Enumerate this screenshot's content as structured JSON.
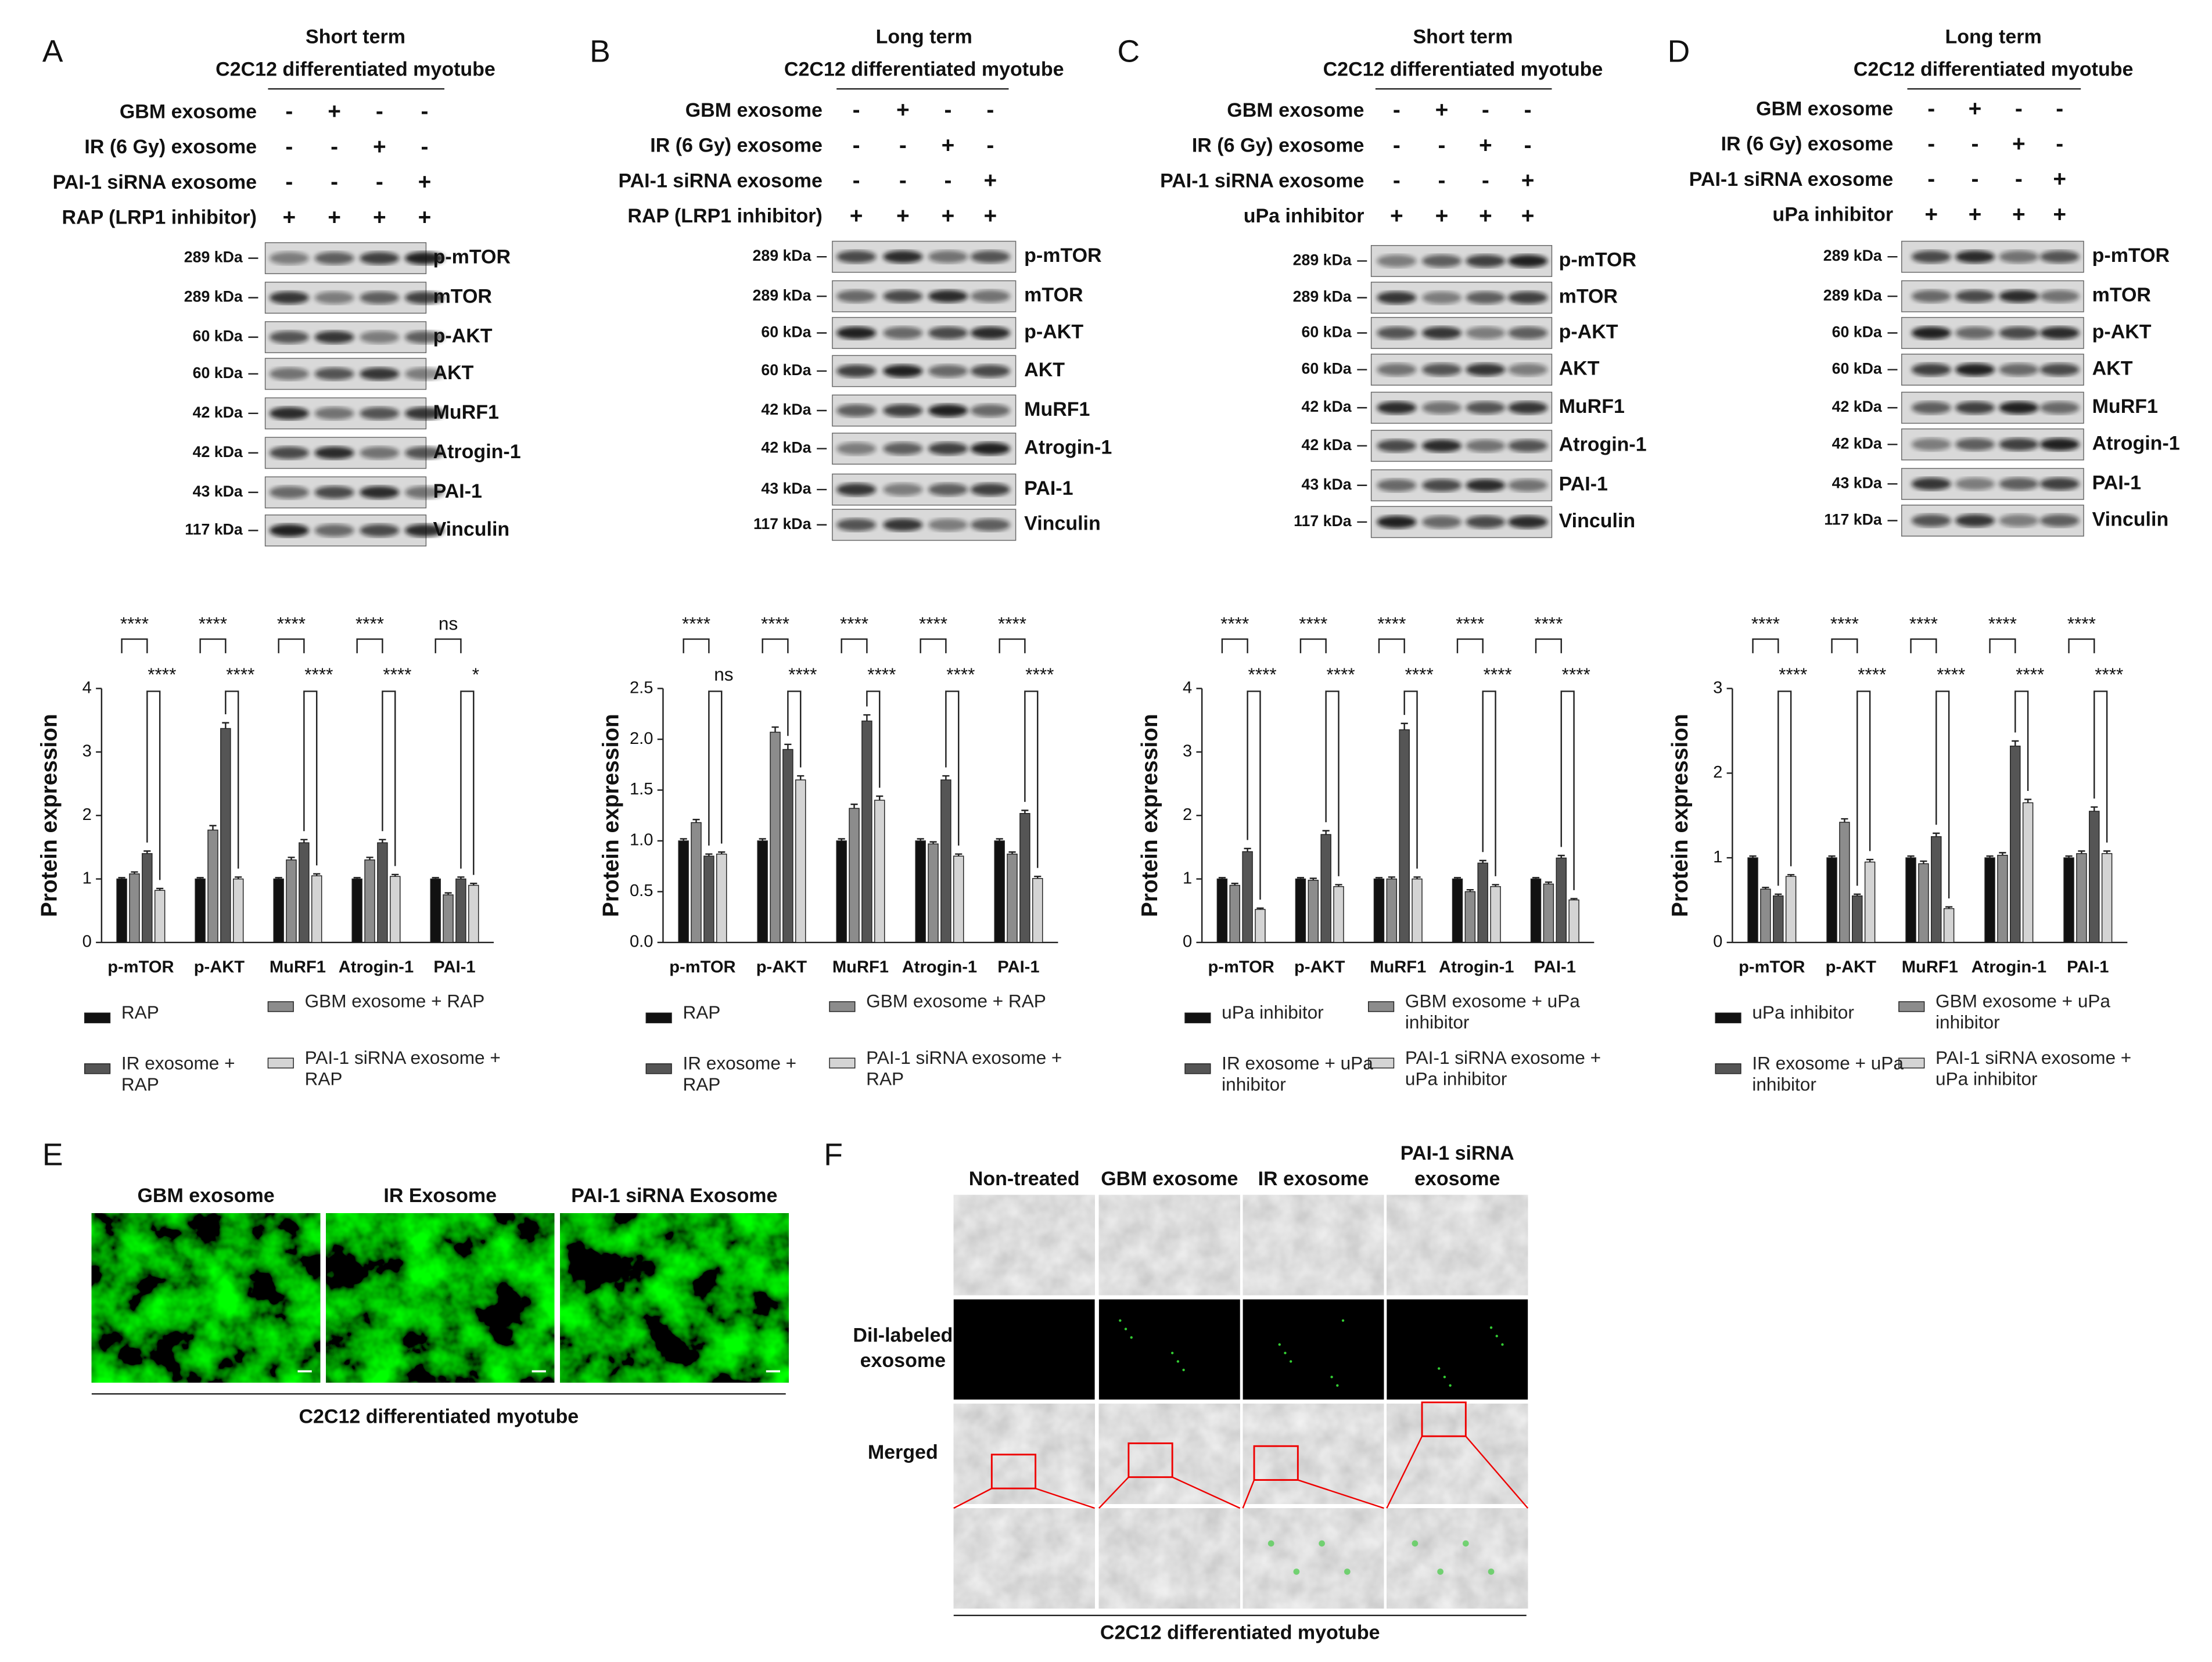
{
  "panels": [
    {
      "letter": "A",
      "title": "Short term",
      "subtitle": "C2C12 differentiated myotube",
      "conditions": [
        {
          "label": "GBM exosome",
          "signs": [
            "-",
            "+",
            "-",
            "-"
          ]
        },
        {
          "label": "IR (6 Gy) exosome",
          "signs": [
            "-",
            "-",
            "+",
            "-"
          ]
        },
        {
          "label": "PAI-1 siRNA exosome",
          "signs": [
            "-",
            "-",
            "-",
            "+"
          ]
        },
        {
          "label": "RAP (LRP1 inhibitor)",
          "signs": [
            "+",
            "+",
            "+",
            "+"
          ]
        }
      ],
      "bands": [
        {
          "kda": "289 kDa",
          "name": "p-mTOR"
        },
        {
          "kda": "289 kDa",
          "name": "mTOR"
        },
        {
          "kda": "60 kDa",
          "name": "p-AKT"
        },
        {
          "kda": "60 kDa",
          "name": "AKT"
        },
        {
          "kda": "42 kDa",
          "name": "MuRF1"
        },
        {
          "kda": "42 kDa",
          "name": "Atrogin-1"
        },
        {
          "kda": "43 kDa",
          "name": "PAI-1"
        },
        {
          "kda": "117 kDa",
          "name": "Vinculin"
        }
      ]
    },
    {
      "letter": "B",
      "title": "Long term",
      "subtitle": "C2C12 differentiated myotube",
      "conditions": [
        {
          "label": "GBM exosome",
          "signs": [
            "-",
            "+",
            "-",
            "-"
          ]
        },
        {
          "label": "IR (6 Gy) exosome",
          "signs": [
            "-",
            "-",
            "+",
            "-"
          ]
        },
        {
          "label": "PAI-1 siRNA exosome",
          "signs": [
            "-",
            "-",
            "-",
            "+"
          ]
        },
        {
          "label": "RAP (LRP1 inhibitor)",
          "signs": [
            "+",
            "+",
            "+",
            "+"
          ]
        }
      ],
      "bands": [
        {
          "kda": "289 kDa",
          "name": "p-mTOR"
        },
        {
          "kda": "289 kDa",
          "name": "mTOR"
        },
        {
          "kda": "60 kDa",
          "name": "p-AKT"
        },
        {
          "kda": "60 kDa",
          "name": "AKT"
        },
        {
          "kda": "42 kDa",
          "name": "MuRF1"
        },
        {
          "kda": "42 kDa",
          "name": "Atrogin-1"
        },
        {
          "kda": "43 kDa",
          "name": "PAI-1"
        },
        {
          "kda": "117 kDa",
          "name": "Vinculin"
        }
      ]
    },
    {
      "letter": "C",
      "title": "Short term",
      "subtitle": "C2C12 differentiated myotube",
      "conditions": [
        {
          "label": "GBM exosome",
          "signs": [
            "-",
            "+",
            "-",
            "-"
          ]
        },
        {
          "label": "IR (6 Gy) exosome",
          "signs": [
            "-",
            "-",
            "+",
            "-"
          ]
        },
        {
          "label": "PAI-1 siRNA exosome",
          "signs": [
            "-",
            "-",
            "-",
            "+"
          ]
        },
        {
          "label": "uPa inhibitor",
          "signs": [
            "+",
            "+",
            "+",
            "+"
          ]
        }
      ],
      "bands": [
        {
          "kda": "289 kDa",
          "name": "p-mTOR"
        },
        {
          "kda": "289 kDa",
          "name": "mTOR"
        },
        {
          "kda": "60 kDa",
          "name": "p-AKT"
        },
        {
          "kda": "60 kDa",
          "name": "AKT"
        },
        {
          "kda": "42 kDa",
          "name": "MuRF1"
        },
        {
          "kda": "42 kDa",
          "name": "Atrogin-1"
        },
        {
          "kda": "43 kDa",
          "name": "PAI-1"
        },
        {
          "kda": "117 kDa",
          "name": "Vinculin"
        }
      ]
    },
    {
      "letter": "D",
      "title": "Long term",
      "subtitle": "C2C12 differentiated myotube",
      "conditions": [
        {
          "label": "GBM exosome",
          "signs": [
            "-",
            "+",
            "-",
            "-"
          ]
        },
        {
          "label": "IR (6 Gy) exosome",
          "signs": [
            "-",
            "-",
            "+",
            "-"
          ]
        },
        {
          "label": "PAI-1 siRNA exosome",
          "signs": [
            "-",
            "-",
            "-",
            "+"
          ]
        },
        {
          "label": "uPa inhibitor",
          "signs": [
            "+",
            "+",
            "+",
            "+"
          ]
        }
      ],
      "bands": [
        {
          "kda": "289 kDa",
          "name": "p-mTOR"
        },
        {
          "kda": "289 kDa",
          "name": "mTOR"
        },
        {
          "kda": "60 kDa",
          "name": "p-AKT"
        },
        {
          "kda": "60 kDa",
          "name": "AKT"
        },
        {
          "kda": "42 kDa",
          "name": "MuRF1"
        },
        {
          "kda": "42 kDa",
          "name": "Atrogin-1"
        },
        {
          "kda": "43 kDa",
          "name": "PAI-1"
        },
        {
          "kda": "117 kDa",
          "name": "Vinculin"
        }
      ]
    }
  ],
  "chart_data": [
    {
      "type": "bar",
      "ylabel": "Protein expression",
      "categories": [
        "p-mTOR",
        "p-AKT",
        "MuRF1",
        "Atrogin-1",
        "PAI-1"
      ],
      "ylim": [
        0,
        4
      ],
      "yticks": [
        0,
        1,
        2,
        3,
        4
      ],
      "series": [
        {
          "name": "RAP",
          "color": "#111111",
          "values": [
            1.0,
            1.0,
            1.0,
            1.0,
            1.0
          ],
          "errors": [
            0.02,
            0.02,
            0.02,
            0.02,
            0.02
          ]
        },
        {
          "name": "GBM exosome + RAP",
          "color": "#8c8c8c",
          "values": [
            1.08,
            1.77,
            1.3,
            1.3,
            0.75
          ],
          "errors": [
            0.03,
            0.07,
            0.04,
            0.04,
            0.03
          ]
        },
        {
          "name": "IR exosome + RAP",
          "color": "#555555",
          "values": [
            1.4,
            3.37,
            1.57,
            1.57,
            1.0
          ],
          "errors": [
            0.04,
            0.09,
            0.05,
            0.05,
            0.03
          ]
        },
        {
          "name": "PAI-1 siRNA exosome + RAP",
          "color": "#d4d4d4",
          "values": [
            0.82,
            1.0,
            1.05,
            1.04,
            0.9
          ],
          "errors": [
            0.03,
            0.03,
            0.03,
            0.03,
            0.03
          ]
        }
      ],
      "significance_top": [
        "****",
        "****",
        "****",
        "****",
        "ns"
      ],
      "significance_bottom": [
        "****",
        "****",
        "****",
        "****",
        "*"
      ]
    },
    {
      "type": "bar",
      "ylabel": "Protein expression",
      "categories": [
        "p-mTOR",
        "p-AKT",
        "MuRF1",
        "Atrogin-1",
        "PAI-1"
      ],
      "ylim": [
        0,
        2.5
      ],
      "yticks": [
        {
          "value": 0,
          "label": "0.0"
        },
        0.5,
        {
          "value": 1,
          "label": "1.0"
        },
        1.5,
        {
          "value": 2,
          "label": "2.0"
        },
        2.5
      ],
      "series": [
        {
          "name": "RAP",
          "color": "#111111",
          "values": [
            1.0,
            1.0,
            1.0,
            1.0,
            1.0
          ],
          "errors": [
            0.02,
            0.02,
            0.02,
            0.02,
            0.02
          ]
        },
        {
          "name": "GBM exosome + RAP",
          "color": "#8c8c8c",
          "values": [
            1.18,
            2.07,
            1.32,
            0.97,
            0.87
          ],
          "errors": [
            0.03,
            0.05,
            0.04,
            0.02,
            0.02
          ]
        },
        {
          "name": "IR exosome + RAP",
          "color": "#555555",
          "values": [
            0.85,
            1.9,
            2.18,
            1.6,
            1.27
          ],
          "errors": [
            0.02,
            0.05,
            0.06,
            0.04,
            0.03
          ]
        },
        {
          "name": "PAI-1 siRNA exosome + RAP",
          "color": "#d4d4d4",
          "values": [
            0.87,
            1.6,
            1.4,
            0.85,
            0.63
          ],
          "errors": [
            0.02,
            0.04,
            0.04,
            0.02,
            0.02
          ]
        }
      ],
      "significance_top": [
        "****",
        "****",
        "****",
        "****",
        "****"
      ],
      "significance_bottom": [
        "ns",
        "****",
        "****",
        "****",
        "****"
      ]
    },
    {
      "type": "bar",
      "ylabel": "Protein expression",
      "categories": [
        "p-mTOR",
        "p-AKT",
        "MuRF1",
        "Atrogin-1",
        "PAI-1"
      ],
      "ylim": [
        0,
        4
      ],
      "yticks": [
        0,
        1,
        2,
        3,
        4
      ],
      "series": [
        {
          "name": "uPa inhibitor",
          "color": "#111111",
          "values": [
            1.0,
            1.0,
            1.0,
            1.0,
            1.0
          ],
          "errors": [
            0.02,
            0.02,
            0.02,
            0.02,
            0.02
          ]
        },
        {
          "name": "GBM exosome + uPa inhibitor",
          "color": "#8c8c8c",
          "values": [
            0.9,
            0.98,
            1.0,
            0.8,
            0.92
          ],
          "errors": [
            0.03,
            0.03,
            0.03,
            0.03,
            0.03
          ]
        },
        {
          "name": "IR exosome + uPa inhibitor",
          "color": "#555555",
          "values": [
            1.43,
            1.7,
            3.35,
            1.25,
            1.33
          ],
          "errors": [
            0.05,
            0.06,
            0.1,
            0.04,
            0.04
          ]
        },
        {
          "name": "PAI-1 siRNA exosome + uPa inhibitor",
          "color": "#d4d4d4",
          "values": [
            0.52,
            0.88,
            1.0,
            0.88,
            0.67
          ],
          "errors": [
            0.02,
            0.03,
            0.03,
            0.03,
            0.02
          ]
        }
      ],
      "significance_top": [
        "****",
        "****",
        "****",
        "****",
        "****"
      ],
      "significance_bottom": [
        "****",
        "****",
        "****",
        "****",
        "****"
      ]
    },
    {
      "type": "bar",
      "ylabel": "Protein expression",
      "categories": [
        "p-mTOR",
        "p-AKT",
        "MuRF1",
        "Atrogin-1",
        "PAI-1"
      ],
      "ylim": [
        0,
        3
      ],
      "yticks": [
        0,
        1,
        2,
        3
      ],
      "series": [
        {
          "name": "uPa inhibitor",
          "color": "#111111",
          "values": [
            1.0,
            1.0,
            1.0,
            1.0,
            1.0
          ],
          "errors": [
            0.02,
            0.02,
            0.02,
            0.02,
            0.02
          ]
        },
        {
          "name": "GBM exosome + uPa inhibitor",
          "color": "#8c8c8c",
          "values": [
            0.63,
            1.42,
            0.93,
            1.03,
            1.05
          ],
          "errors": [
            0.02,
            0.04,
            0.03,
            0.03,
            0.03
          ]
        },
        {
          "name": "IR exosome + uPa inhibitor",
          "color": "#555555",
          "values": [
            0.55,
            0.55,
            1.25,
            2.32,
            1.55
          ],
          "errors": [
            0.02,
            0.02,
            0.04,
            0.06,
            0.05
          ]
        },
        {
          "name": "PAI-1 siRNA exosome + uPa inhibitor",
          "color": "#d4d4d4",
          "values": [
            0.78,
            0.95,
            0.4,
            1.65,
            1.05
          ],
          "errors": [
            0.02,
            0.03,
            0.02,
            0.04,
            0.03
          ]
        }
      ],
      "significance_top": [
        "****",
        "****",
        "****",
        "****",
        "****"
      ],
      "significance_bottom": [
        "****",
        "****",
        "****",
        "****",
        "****"
      ]
    }
  ],
  "panel_e": {
    "letter": "E",
    "columns": [
      "GBM exosome",
      "IR Exosome",
      "PAI-1 siRNA Exosome"
    ],
    "caption": "C2C12 differentiated myotube"
  },
  "panel_f": {
    "letter": "F",
    "columns": [
      "Non-treated",
      "GBM exosome",
      "IR exosome",
      "PAI-1 siRNA exosome"
    ],
    "row_labels": [
      "DiI-labeled exosome",
      "Merged"
    ],
    "caption": "C2C12 differentiated myotube"
  }
}
